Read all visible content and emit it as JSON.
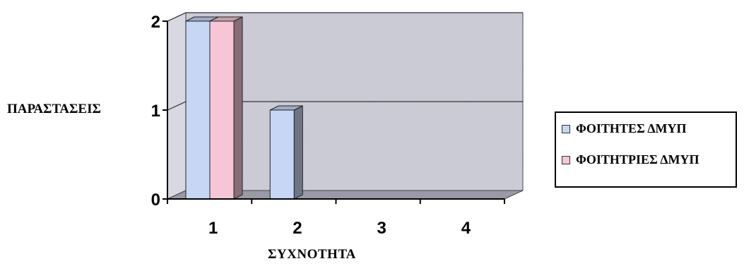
{
  "chart_data": {
    "type": "bar",
    "categories": [
      "1",
      "2",
      "3",
      "4"
    ],
    "series": [
      {
        "name": "ΦΟΙΤΗΤΕΣ ΔΜΥΠ",
        "values": [
          2,
          1,
          0,
          0
        ],
        "color": "#c6d7f5"
      },
      {
        "name": "ΦΟΙΤΗΤΡΙΕΣ ΔΜΥΠ",
        "values": [
          2,
          0,
          0,
          0
        ],
        "color": "#f6c6d6"
      }
    ],
    "title": "",
    "xlabel": "ΣΥΧΝΟΤΗΤΑ",
    "ylabel": "ΠΑΡΑΣΤΑΣΕΙΣ",
    "ylim": [
      0,
      2
    ],
    "yticks": [
      "0",
      "1",
      "2"
    ],
    "grid": true,
    "style": "3d",
    "legend_position": "right",
    "wall_color": "#cdcdd8"
  }
}
